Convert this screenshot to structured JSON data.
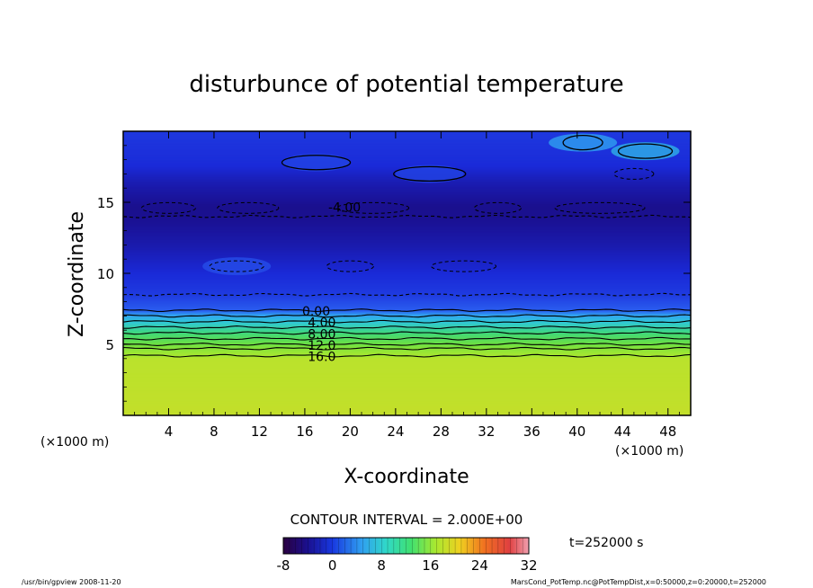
{
  "chart_data": {
    "type": "heatmap",
    "title": "disturbunce of potential temperature",
    "xlabel": "X-coordinate",
    "ylabel": "Z-coordinate",
    "x_unit": "(×1000 m)",
    "y_unit": "(×1000 m)",
    "xlim": [
      0,
      50
    ],
    "ylim": [
      0,
      20
    ],
    "x_ticks": [
      4,
      8,
      12,
      16,
      20,
      24,
      28,
      32,
      36,
      40,
      44,
      48
    ],
    "y_ticks": [
      5,
      10,
      15
    ],
    "contour_interval_text": "CONTOUR INTERVAL = 2.000E+00",
    "contour_labels": [
      "-4.00",
      "0.00",
      "4.00",
      "8.00",
      "12.0",
      "16.0"
    ],
    "contour_label_values": [
      -4,
      0,
      4,
      8,
      12,
      16
    ],
    "colorbar": {
      "min": -8,
      "max": 32,
      "ticks": [
        -8,
        0,
        8,
        16,
        24,
        32
      ]
    },
    "time_label": "t=252000 s",
    "footer_left": "/usr/bin/gpview  2008-11-20",
    "footer_right": "MarsCond_PotTemp.nc@PotTempDist,x=0:50000,z=0:20000,t=252000",
    "profile_by_height": [
      {
        "z": 0.0,
        "value": 17.5
      },
      {
        "z": 4.0,
        "value": 17.0
      },
      {
        "z": 4.2,
        "value": 16.0
      },
      {
        "z": 4.7,
        "value": 14.0
      },
      {
        "z": 5.0,
        "value": 12.0
      },
      {
        "z": 5.4,
        "value": 10.0
      },
      {
        "z": 5.8,
        "value": 8.0
      },
      {
        "z": 6.2,
        "value": 6.0
      },
      {
        "z": 6.6,
        "value": 4.0
      },
      {
        "z": 7.0,
        "value": 2.0
      },
      {
        "z": 7.4,
        "value": 0.0
      },
      {
        "z": 8.5,
        "value": -2.0
      },
      {
        "z": 10.0,
        "value": -3.0
      },
      {
        "z": 12.0,
        "value": -3.6
      },
      {
        "z": 14.5,
        "value": -4.1
      },
      {
        "z": 16.5,
        "value": -3.5
      },
      {
        "z": 18.0,
        "value": -2.8
      },
      {
        "z": 20.0,
        "value": -2.2
      }
    ],
    "warm_patches": [
      {
        "x": 46.0,
        "z": 18.6,
        "value": 2.5
      },
      {
        "x": 40.5,
        "z": 19.2,
        "value": 1.5
      },
      {
        "x": 17.0,
        "z": 17.8,
        "value": -1.5
      },
      {
        "x": 27.0,
        "z": 17.0,
        "value": -1.5
      },
      {
        "x": 10.0,
        "z": 10.5,
        "value": -1.0
      }
    ]
  },
  "colors": {
    "blue_dark": "#1a2ad8",
    "blue": "#2a5ef0",
    "cyan": "#30c8d8",
    "green": "#40d878",
    "yellow_green": "#a8e830"
  }
}
